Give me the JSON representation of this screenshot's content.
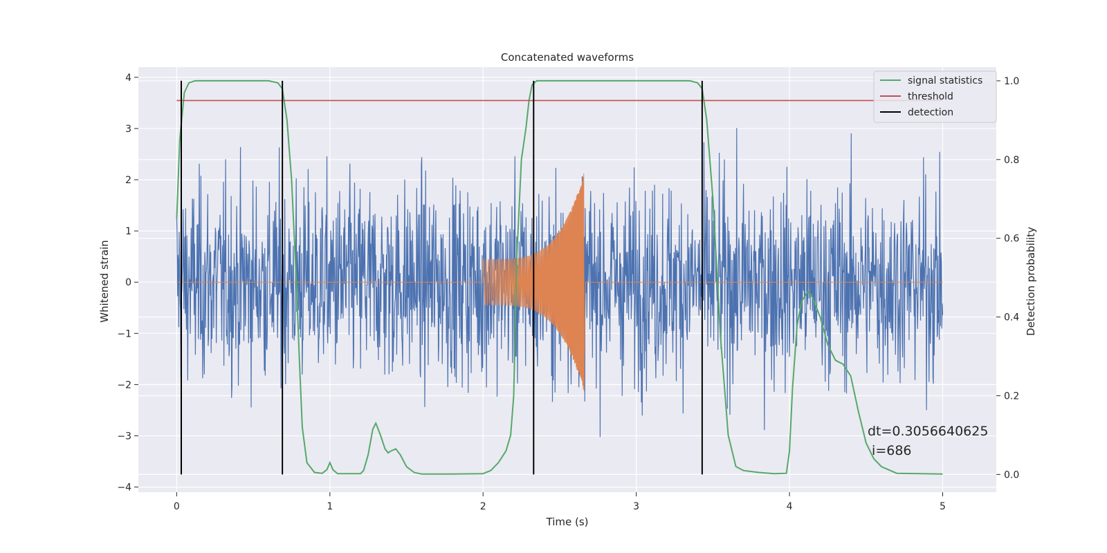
{
  "chart_data": {
    "type": "line",
    "title": "Concatenated waveforms",
    "xlabel": "Time (s)",
    "ylabel": "Whitened strain",
    "y2label": "Detection probability",
    "xlim": [
      -0.25,
      5.35
    ],
    "ylim": [
      -4.1,
      4.2
    ],
    "y2lim": [
      -0.045,
      1.035
    ],
    "x_ticks": [
      0,
      1,
      2,
      3,
      4,
      5
    ],
    "y_ticks": [
      -4,
      -3,
      -2,
      -1,
      0,
      1,
      2,
      3,
      4
    ],
    "y2_ticks": [
      0.0,
      0.2,
      0.4,
      0.6,
      0.8,
      1.0
    ],
    "x_tick_labels": [
      "0",
      "1",
      "2",
      "3",
      "4",
      "5"
    ],
    "y_tick_labels": [
      "−4",
      "−3",
      "−2",
      "−1",
      "0",
      "1",
      "2",
      "3",
      "4"
    ],
    "y2_tick_labels": [
      "0.0",
      "0.2",
      "0.4",
      "0.6",
      "0.8",
      "1.0"
    ],
    "grid": true,
    "legend_position": "top-right",
    "colors": {
      "background": "#eaeaf2",
      "grid": "#ffffff",
      "whitened_strain": "#4c72b0",
      "injected_waveform": "#dd8452",
      "signal_statistics": "#55a868",
      "threshold": "#c44e52",
      "detection": "#000000"
    },
    "series": [
      {
        "name": "signal statistics",
        "axis": "right",
        "x": [
          0.0,
          0.02,
          0.05,
          0.08,
          0.12,
          0.2,
          0.4,
          0.6,
          0.66,
          0.69,
          0.72,
          0.75,
          0.78,
          0.8,
          0.82,
          0.85,
          0.9,
          0.95,
          0.98,
          1.0,
          1.02,
          1.05,
          1.1,
          1.2,
          1.22,
          1.25,
          1.28,
          1.3,
          1.33,
          1.36,
          1.38,
          1.4,
          1.43,
          1.46,
          1.5,
          1.55,
          1.6,
          1.8,
          2.0,
          2.05,
          2.1,
          2.15,
          2.18,
          2.2,
          2.22,
          2.25,
          2.28,
          2.3,
          2.32,
          2.35,
          2.4,
          2.6,
          3.0,
          3.35,
          3.4,
          3.43,
          3.46,
          3.5,
          3.55,
          3.6,
          3.65,
          3.7,
          3.8,
          3.9,
          3.98,
          4.0,
          4.02,
          4.05,
          4.08,
          4.12,
          4.15,
          4.2,
          4.25,
          4.3,
          4.35,
          4.4,
          4.45,
          4.5,
          4.55,
          4.6,
          4.7,
          5.0
        ],
        "values": [
          0.65,
          0.85,
          0.97,
          0.995,
          1.0,
          1.0,
          1.0,
          1.0,
          0.995,
          0.98,
          0.9,
          0.75,
          0.5,
          0.3,
          0.12,
          0.03,
          0.005,
          0.003,
          0.012,
          0.03,
          0.012,
          0.002,
          0.002,
          0.002,
          0.01,
          0.05,
          0.115,
          0.13,
          0.1,
          0.065,
          0.055,
          0.06,
          0.065,
          0.05,
          0.02,
          0.005,
          0.001,
          0.001,
          0.002,
          0.01,
          0.03,
          0.06,
          0.1,
          0.2,
          0.55,
          0.8,
          0.88,
          0.95,
          0.99,
          1.0,
          1.0,
          1.0,
          1.0,
          1.0,
          0.995,
          0.98,
          0.9,
          0.7,
          0.35,
          0.1,
          0.02,
          0.01,
          0.005,
          0.002,
          0.003,
          0.06,
          0.22,
          0.38,
          0.44,
          0.465,
          0.45,
          0.4,
          0.33,
          0.29,
          0.28,
          0.25,
          0.16,
          0.08,
          0.04,
          0.02,
          0.003,
          0.001
        ]
      },
      {
        "name": "threshold",
        "axis": "right",
        "x": [
          0.0,
          5.0
        ],
        "values": [
          0.95,
          0.95
        ]
      },
      {
        "name": "detection",
        "axis": "right",
        "type": "vlines",
        "x": [
          0.03,
          0.69,
          2.33,
          3.43
        ],
        "ymin": 0.0,
        "ymax": 1.0
      }
    ]
  },
  "annotation": {
    "dt": "dt=0.3056640625",
    "i": " i=686"
  }
}
